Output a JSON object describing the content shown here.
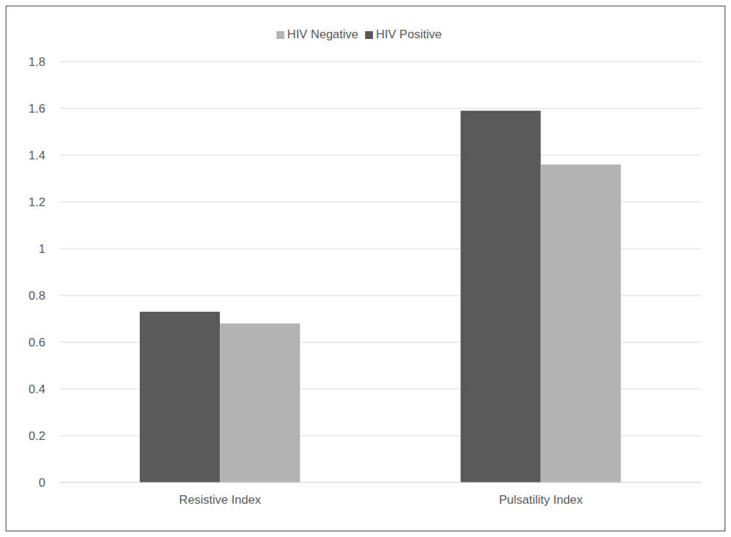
{
  "chart_data": {
    "type": "bar",
    "categories": [
      "Resistive Index",
      "Pulsatility Index"
    ],
    "series": [
      {
        "name": "HIV Positive",
        "color": "#595959",
        "values": [
          0.73,
          1.59
        ]
      },
      {
        "name": "HIV Negative",
        "color": "#b3b3b3",
        "values": [
          0.68,
          1.36
        ]
      }
    ],
    "ylim": [
      0,
      1.8
    ],
    "yticks": [
      0,
      0.2,
      0.4,
      0.6,
      0.8,
      1,
      1.2,
      1.4,
      1.6,
      1.8
    ],
    "grid": true,
    "legend": "top"
  }
}
